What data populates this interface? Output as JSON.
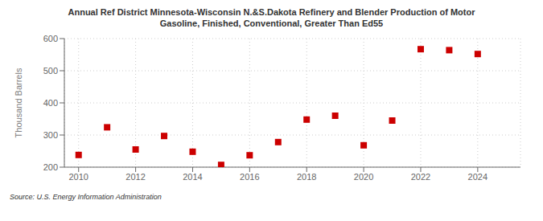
{
  "chart_data": {
    "type": "scatter",
    "title": "Annual Ref District Minnesota-Wisconsin N.&S.Dakota Refinery and Blender Production of Motor\nGasoline, Finished, Conventional, Greater Than Ed55",
    "ylabel": "Thousand Barrels",
    "source": "Source: U.S. Energy Information Administration",
    "x": [
      2010,
      2011,
      2012,
      2013,
      2014,
      2015,
      2016,
      2017,
      2018,
      2019,
      2020,
      2021,
      2022,
      2023,
      2024
    ],
    "values": [
      238,
      324,
      255,
      297,
      248,
      207,
      237,
      278,
      348,
      360,
      268,
      345,
      567,
      564,
      552
    ],
    "color": "#cc0000",
    "marker": "square",
    "xlim": [
      2009.5,
      2025.5
    ],
    "ylim": [
      200,
      600
    ],
    "xticks": [
      2010,
      2012,
      2014,
      2016,
      2018,
      2020,
      2022,
      2024
    ],
    "yticks": [
      200,
      300,
      400,
      500,
      600
    ],
    "grid": true
  }
}
